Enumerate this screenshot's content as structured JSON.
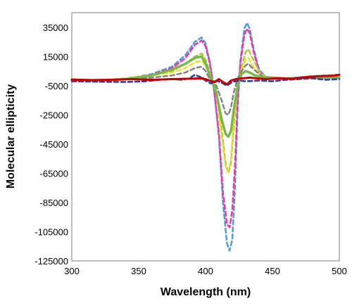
{
  "chart_data": {
    "type": "line",
    "xlabel": "Wavelength (nm)",
    "ylabel": "Molecular ellipticity",
    "xlim": [
      300,
      500
    ],
    "ylim": [
      -125000,
      45000
    ],
    "x_ticks": [
      300,
      350,
      400,
      450,
      500
    ],
    "y_ticks": [
      35000,
      15000,
      -5000,
      -25000,
      -45000,
      -65000,
      -85000,
      -105000,
      -125000
    ],
    "grid": false,
    "legend": "none",
    "series": [
      {
        "color": "#5b9bd5",
        "dash": "6,4",
        "width": 2.6,
        "points": [
          [
            300,
            -1500
          ],
          [
            320,
            -1800
          ],
          [
            340,
            -500
          ],
          [
            360,
            3000
          ],
          [
            375,
            8000
          ],
          [
            385,
            16000
          ],
          [
            392,
            25000
          ],
          [
            397,
            28000
          ],
          [
            400,
            24000
          ],
          [
            403,
            12000
          ],
          [
            406,
            -5000
          ],
          [
            410,
            -40000
          ],
          [
            413,
            -85000
          ],
          [
            416,
            -113000
          ],
          [
            418,
            -118000
          ],
          [
            420,
            -110000
          ],
          [
            422,
            -75000
          ],
          [
            424,
            -20000
          ],
          [
            426,
            12000
          ],
          [
            429,
            34000
          ],
          [
            431,
            38000
          ],
          [
            433,
            34000
          ],
          [
            436,
            20000
          ],
          [
            440,
            6000
          ],
          [
            445,
            1000
          ],
          [
            460,
            0
          ],
          [
            480,
            1500
          ],
          [
            500,
            2500
          ]
        ]
      },
      {
        "color": "#e040a8",
        "dash": "6,4",
        "width": 2.6,
        "points": [
          [
            300,
            -1000
          ],
          [
            320,
            -1500
          ],
          [
            340,
            -200
          ],
          [
            360,
            2500
          ],
          [
            375,
            7000
          ],
          [
            385,
            14000
          ],
          [
            392,
            23000
          ],
          [
            397,
            26000
          ],
          [
            400,
            22000
          ],
          [
            403,
            11000
          ],
          [
            406,
            -5000
          ],
          [
            410,
            -38000
          ],
          [
            413,
            -78000
          ],
          [
            416,
            -100000
          ],
          [
            418,
            -102000
          ],
          [
            420,
            -90000
          ],
          [
            422,
            -60000
          ],
          [
            424,
            -15000
          ],
          [
            426,
            10000
          ],
          [
            429,
            30000
          ],
          [
            431,
            34000
          ],
          [
            433,
            31000
          ],
          [
            436,
            18000
          ],
          [
            440,
            5000
          ],
          [
            445,
            1000
          ],
          [
            460,
            0
          ],
          [
            480,
            1200
          ],
          [
            500,
            2000
          ]
        ]
      },
      {
        "color": "#b3c23b",
        "dash": "6,4",
        "width": 2.4,
        "points": [
          [
            300,
            -800
          ],
          [
            320,
            -1200
          ],
          [
            340,
            0
          ],
          [
            360,
            2500
          ],
          [
            375,
            5000
          ],
          [
            385,
            10000
          ],
          [
            392,
            15000
          ],
          [
            397,
            17000
          ],
          [
            400,
            13000
          ],
          [
            404,
            2000
          ],
          [
            408,
            -8000
          ],
          [
            412,
            -35000
          ],
          [
            415,
            -58000
          ],
          [
            417,
            -65000
          ],
          [
            419,
            -58000
          ],
          [
            421,
            -35000
          ],
          [
            424,
            -5000
          ],
          [
            427,
            8000
          ],
          [
            430,
            18000
          ],
          [
            432,
            20000
          ],
          [
            435,
            14000
          ],
          [
            440,
            5000
          ],
          [
            445,
            1000
          ],
          [
            460,
            0
          ],
          [
            480,
            800
          ],
          [
            500,
            1500
          ]
        ]
      },
      {
        "color": "#e5e02a",
        "dash": "6,4",
        "width": 2.4,
        "points": [
          [
            300,
            -500
          ],
          [
            320,
            -1000
          ],
          [
            340,
            0
          ],
          [
            360,
            2000
          ],
          [
            375,
            4000
          ],
          [
            385,
            7000
          ],
          [
            392,
            11000
          ],
          [
            397,
            12000
          ],
          [
            400,
            9000
          ],
          [
            404,
            0
          ],
          [
            408,
            -10000
          ],
          [
            412,
            -40000
          ],
          [
            415,
            -60000
          ],
          [
            417,
            -64000
          ],
          [
            419,
            -55000
          ],
          [
            421,
            -30000
          ],
          [
            424,
            -3000
          ],
          [
            427,
            6000
          ],
          [
            430,
            13000
          ],
          [
            432,
            14000
          ],
          [
            435,
            9000
          ],
          [
            440,
            3000
          ],
          [
            445,
            500
          ],
          [
            460,
            0
          ],
          [
            480,
            500
          ],
          [
            500,
            1000
          ]
        ]
      },
      {
        "color": "#808080",
        "dash": "6,4",
        "width": 2.4,
        "points": [
          [
            300,
            -800
          ],
          [
            320,
            -1300
          ],
          [
            340,
            -500
          ],
          [
            360,
            500
          ],
          [
            375,
            2000
          ],
          [
            385,
            4000
          ],
          [
            392,
            7000
          ],
          [
            397,
            8000
          ],
          [
            400,
            5000
          ],
          [
            404,
            -2000
          ],
          [
            408,
            -5000
          ],
          [
            412,
            -15000
          ],
          [
            415,
            -24000
          ],
          [
            417,
            -25000
          ],
          [
            419,
            -20000
          ],
          [
            421,
            -10000
          ],
          [
            424,
            0
          ],
          [
            427,
            5000
          ],
          [
            430,
            9000
          ],
          [
            432,
            10000
          ],
          [
            435,
            7000
          ],
          [
            440,
            3000
          ],
          [
            445,
            0
          ],
          [
            460,
            -500
          ],
          [
            480,
            500
          ],
          [
            500,
            1000
          ]
        ]
      },
      {
        "color": "#7ab648",
        "dash": "none",
        "width": 3.4,
        "points": [
          [
            300,
            -1000
          ],
          [
            320,
            -1500
          ],
          [
            340,
            -500
          ],
          [
            360,
            2000
          ],
          [
            375,
            6000
          ],
          [
            385,
            10000
          ],
          [
            392,
            14000
          ],
          [
            397,
            15000
          ],
          [
            400,
            10000
          ],
          [
            404,
            0
          ],
          [
            408,
            -10000
          ],
          [
            412,
            -28000
          ],
          [
            415,
            -38000
          ],
          [
            417,
            -40000
          ],
          [
            419,
            -36000
          ],
          [
            421,
            -22000
          ],
          [
            424,
            -5000
          ],
          [
            427,
            3000
          ],
          [
            430,
            5000
          ],
          [
            433,
            4000
          ],
          [
            437,
            2000
          ],
          [
            445,
            500
          ],
          [
            460,
            0
          ],
          [
            480,
            300
          ],
          [
            500,
            500
          ]
        ]
      },
      {
        "color": "#2e3f9e",
        "dash": "6,4",
        "width": 2.6,
        "points": [
          [
            300,
            -2000
          ],
          [
            320,
            -2300
          ],
          [
            340,
            -2500
          ],
          [
            355,
            -2000
          ],
          [
            365,
            -1000
          ],
          [
            375,
            -500
          ],
          [
            382,
            -1000
          ],
          [
            388,
            0
          ],
          [
            392,
            2500
          ],
          [
            396,
            1000
          ],
          [
            400,
            -1500
          ],
          [
            404,
            -3500
          ],
          [
            408,
            -1500
          ],
          [
            412,
            -3000
          ],
          [
            416,
            -5000
          ],
          [
            420,
            -2500
          ],
          [
            425,
            -1500
          ],
          [
            430,
            -2000
          ],
          [
            440,
            -1500
          ],
          [
            450,
            -2000
          ],
          [
            460,
            -1000
          ],
          [
            470,
            -500
          ],
          [
            480,
            0
          ],
          [
            490,
            -1000
          ],
          [
            500,
            -500
          ]
        ]
      },
      {
        "color": "#c00000",
        "dash": "none",
        "width": 3.0,
        "points": [
          [
            300,
            -800
          ],
          [
            315,
            -1200
          ],
          [
            330,
            -1000
          ],
          [
            345,
            -500
          ],
          [
            360,
            -1000
          ],
          [
            375,
            -500
          ],
          [
            390,
            -200
          ],
          [
            398,
            0
          ],
          [
            403,
            -1500
          ],
          [
            407,
            -2500
          ],
          [
            410,
            -500
          ],
          [
            413,
            -2500
          ],
          [
            416,
            -4000
          ],
          [
            419,
            -1500
          ],
          [
            423,
            -500
          ],
          [
            428,
            0
          ],
          [
            433,
            500
          ],
          [
            438,
            0
          ],
          [
            445,
            -500
          ],
          [
            455,
            0
          ],
          [
            465,
            -300
          ],
          [
            475,
            800
          ],
          [
            485,
            1500
          ],
          [
            495,
            1800
          ],
          [
            500,
            2500
          ]
        ]
      }
    ]
  }
}
